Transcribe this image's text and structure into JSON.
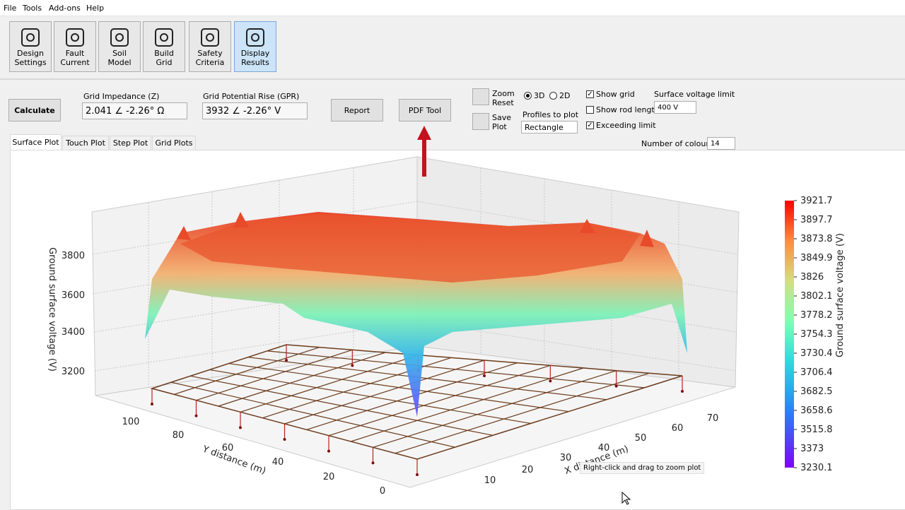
{
  "menu": [
    "File",
    "Tools",
    "Add-ons",
    "Help"
  ],
  "toolbar": [
    {
      "lines": [
        "Design",
        "Settings"
      ]
    },
    {
      "lines": [
        "Fault",
        "Current"
      ]
    },
    {
      "lines": [
        "Soil",
        "Model"
      ]
    },
    {
      "lines": [
        "Build",
        "Grid"
      ]
    },
    {
      "lines": [
        "Safety",
        "Criteria"
      ]
    },
    {
      "lines": [
        "Display",
        "Results"
      ],
      "active": true
    }
  ],
  "controls": {
    "calculate": "Calculate",
    "impedance_label": "Grid Impedance (Z)",
    "impedance_value": "2.041 ∠ -2.26° Ω",
    "gpr_label": "Grid Potential Rise (GPR)",
    "gpr_value": "3932 ∠ -2.26° V",
    "report": "Report",
    "pdf_tool": "PDF Tool",
    "zoom_reset": [
      "Zoom",
      "Reset"
    ],
    "save_plot": [
      "Save",
      "Plot"
    ],
    "radios": [
      {
        "label": "3D",
        "checked": true
      },
      {
        "label": "2D",
        "checked": false
      }
    ],
    "profiles_label": "Profiles to plot",
    "profiles_value": "Rectangle",
    "checkboxes": [
      {
        "label": "Show grid",
        "checked": true
      },
      {
        "label": "Show rod length",
        "checked": false
      },
      {
        "label": "Exceeding limit",
        "checked": true
      }
    ],
    "limit_label": "Surface voltage limit",
    "limit_value": "400 V",
    "colours_label": "Number of colours",
    "colours_value": "14"
  },
  "tabs": {
    "items": [
      "Surface Plot",
      "Touch Plot",
      "Step Plot",
      "Grid Plots"
    ],
    "active": 0
  },
  "plot": {
    "z_label": "Ground surface voltage (V)",
    "z_ticks": [
      "3800",
      "3600",
      "3400",
      "3200"
    ],
    "y_label": "Y distance (m)",
    "y_ticks": [
      "100",
      "80",
      "60",
      "40",
      "20",
      "0"
    ],
    "x_label": "X distance (m)",
    "x_ticks": [
      "10",
      "20",
      "30",
      "40",
      "50",
      "60",
      "70"
    ],
    "colorbar_label": "Ground surface voltage (V)",
    "colorbar_ticks": [
      "3921.7",
      "3897.7",
      "3873.8",
      "3849.9",
      "3826",
      "3802.1",
      "3778.2",
      "3754.3",
      "3730.4",
      "3706.4",
      "3682.5",
      "3658.6",
      "3515.8",
      "3373",
      "3230.1"
    ],
    "tooltip": "Right-click and drag to zoom plot"
  }
}
